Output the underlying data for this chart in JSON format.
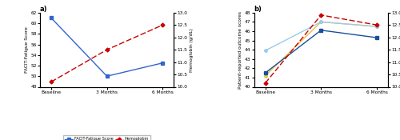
{
  "panel_a": {
    "x_labels": [
      "Baseline",
      "3 Months",
      "6 Months"
    ],
    "facit": [
      61.0,
      50.0,
      52.5
    ],
    "hemo_a": [
      10.2,
      11.5,
      12.5
    ],
    "ylim_left": [
      48.0,
      62.0
    ],
    "ylim_right": [
      10.0,
      13.0
    ],
    "yticks_left": [
      48.0,
      50.0,
      52.0,
      54.0,
      56.0,
      58.0,
      60.0,
      62.0
    ],
    "yticks_right": [
      10.0,
      10.5,
      11.0,
      11.5,
      12.0,
      12.5,
      13.0
    ],
    "ylabel_left": "FACIT-Fatigue Score",
    "ylabel_right": "Hemoglobin (g/dL)",
    "title": "a)"
  },
  "panel_b": {
    "x_labels": [
      "Baseline",
      "3 Months",
      "6 Months"
    ],
    "global_physical": [
      41.2,
      47.0,
      46.5
    ],
    "global_mental": [
      43.9,
      47.0,
      46.5
    ],
    "physical_function": [
      41.5,
      46.1,
      45.3
    ],
    "hemo_b": [
      10.15,
      12.9,
      12.5
    ],
    "ylim_left": [
      40.0,
      48.0
    ],
    "ylim_right": [
      10.0,
      13.0
    ],
    "yticks_left": [
      40.0,
      41.0,
      42.0,
      43.0,
      44.0,
      45.0,
      46.0,
      47.0,
      48.0
    ],
    "yticks_right": [
      10.0,
      10.5,
      11.0,
      11.5,
      12.0,
      12.5,
      13.0
    ],
    "ylabel_left": "Patient-reported outcome scores",
    "ylabel_right": "Hemoglobin (g/dL)",
    "title": "b)"
  },
  "colors": {
    "facit": "#3366cc",
    "hemo": "#cc0000",
    "global_physical": "#e8c44a",
    "global_mental": "#99ccee",
    "physical_function": "#1a4f9c"
  },
  "figsize": [
    5.0,
    1.75
  ],
  "dpi": 100
}
